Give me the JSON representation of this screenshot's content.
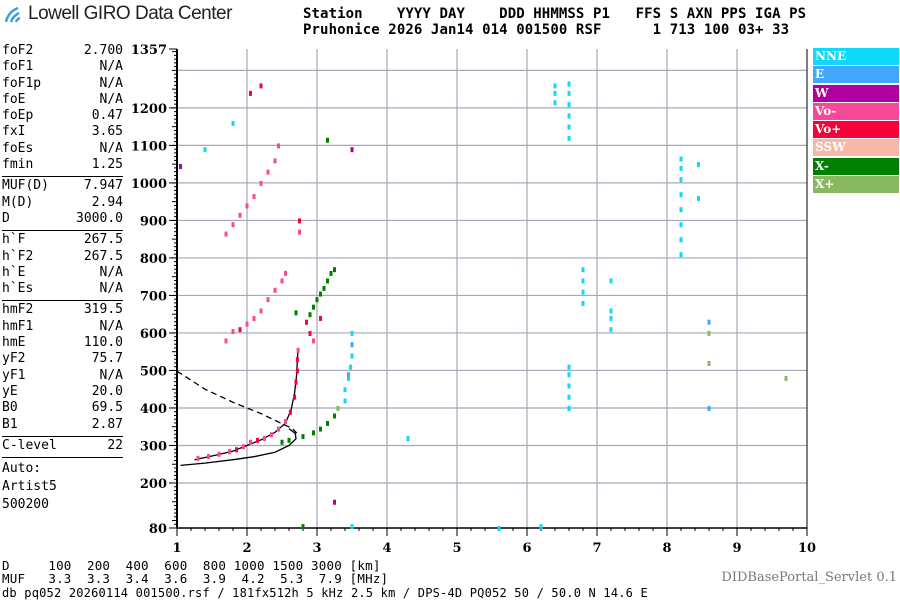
{
  "header": {
    "logo_text": "Lowell GIRO Data Center",
    "labels_line": "Station    YYYY DAY    DDD HHMMSS P1   FFS S AXN PPS IGA PS",
    "values_line": "Pruhonice 2026 Jan14 014 001500 RSF      1 713 100 03+ 33"
  },
  "params": {
    "group1": [
      [
        "foF2",
        "2.700"
      ],
      [
        "foF1",
        "N/A"
      ],
      [
        "foF1p",
        "N/A"
      ],
      [
        "foE",
        "N/A"
      ],
      [
        "foEp",
        "0.47"
      ],
      [
        "fxI",
        "3.65"
      ],
      [
        "foEs",
        "N/A"
      ],
      [
        "fmin",
        "1.25"
      ]
    ],
    "group2": [
      [
        "MUF(D)",
        "7.947"
      ],
      [
        "M(D)",
        "2.94"
      ],
      [
        "D",
        "3000.0"
      ]
    ],
    "group3": [
      [
        "h`F",
        "267.5"
      ],
      [
        "h`F2",
        "267.5"
      ],
      [
        "h`E",
        "N/A"
      ],
      [
        "h`Es",
        "N/A"
      ]
    ],
    "group4": [
      [
        "hmF2",
        "319.5"
      ],
      [
        "hmF1",
        "N/A"
      ],
      [
        "hmE",
        "110.0"
      ],
      [
        "yF2",
        "75.7"
      ],
      [
        "yF1",
        "N/A"
      ],
      [
        "yE",
        "20.0"
      ],
      [
        "B0",
        "69.5"
      ],
      [
        "B1",
        "2.87"
      ]
    ],
    "group5": [
      [
        "C-level",
        "22"
      ]
    ],
    "auto": [
      "Auto:",
      "Artist5",
      "500200"
    ]
  },
  "legend": [
    {
      "label": "NNE",
      "color": "#10d8f8"
    },
    {
      "label": "E",
      "color": "#40a8f8"
    },
    {
      "label": "W",
      "color": "#b000a0"
    },
    {
      "label": "Vo-",
      "color": "#f84898"
    },
    {
      "label": "Vo+",
      "color": "#f80038"
    },
    {
      "label": "SSW",
      "color": "#f8b8a8"
    },
    {
      "label": "X-",
      "color": "#008000"
    },
    {
      "label": "X+",
      "color": "#88b860"
    }
  ],
  "muf_table": {
    "d_line": "D     100  200  400  600  800 1000 1500 3000 [km]",
    "muf_line": "MUF   3.3  3.3  3.4  3.6  3.9  4.2  5.3  7.9 [MHz]"
  },
  "footer": "db pq052 20260114 001500.rsf / 181fx512h 5 kHz 2.5 km / DPS-4D PQ052 50 / 50.0 N 14.6 E",
  "version": "DIDBasePortal_Servlet 0.1",
  "chart_data": {
    "type": "scatter",
    "xlim": [
      1,
      10
    ],
    "ylim": [
      80,
      1357
    ],
    "xticks": [
      1,
      2,
      3,
      4,
      5,
      6,
      7,
      8,
      9,
      10
    ],
    "yticks": [
      80,
      200,
      300,
      400,
      500,
      600,
      700,
      800,
      900,
      1000,
      1100,
      1200,
      1357
    ],
    "grid": true,
    "legend_position": "right",
    "echoes": [
      [
        1.3,
        267,
        "Vo-"
      ],
      [
        1.45,
        272,
        "Vo-"
      ],
      [
        1.6,
        278,
        "Vo-"
      ],
      [
        1.75,
        285,
        "Vo-"
      ],
      [
        1.85,
        290,
        "Vo+"
      ],
      [
        1.95,
        298,
        "Vo-"
      ],
      [
        2.05,
        310,
        "Vo-"
      ],
      [
        2.15,
        315,
        "Vo+"
      ],
      [
        2.25,
        320,
        "Vo-"
      ],
      [
        2.35,
        330,
        "Vo-"
      ],
      [
        2.45,
        345,
        "Vo-"
      ],
      [
        2.55,
        365,
        "Vo-"
      ],
      [
        2.62,
        390,
        "Vo+"
      ],
      [
        2.68,
        430,
        "Vo+"
      ],
      [
        2.7,
        470,
        "Vo+"
      ],
      [
        2.72,
        500,
        "Vo+"
      ],
      [
        2.72,
        530,
        "Vo+"
      ],
      [
        2.73,
        555,
        "Vo-"
      ],
      [
        1.7,
        580,
        "Vo-"
      ],
      [
        1.8,
        605,
        "Vo-"
      ],
      [
        1.9,
        610,
        "Vo+"
      ],
      [
        2.0,
        625,
        "Vo-"
      ],
      [
        2.1,
        640,
        "Vo-"
      ],
      [
        2.2,
        660,
        "Vo-"
      ],
      [
        2.3,
        690,
        "Vo-"
      ],
      [
        2.4,
        715,
        "Vo-"
      ],
      [
        2.5,
        740,
        "Vo-"
      ],
      [
        2.55,
        760,
        "Vo-"
      ],
      [
        2.9,
        600,
        "Vo+"
      ],
      [
        2.85,
        630,
        "Vo+"
      ],
      [
        2.95,
        580,
        "Vo-"
      ],
      [
        3.05,
        640,
        "Vo+"
      ],
      [
        1.7,
        865,
        "Vo-"
      ],
      [
        1.8,
        890,
        "Vo-"
      ],
      [
        1.9,
        915,
        "Vo-"
      ],
      [
        2.0,
        940,
        "Vo-"
      ],
      [
        2.1,
        965,
        "Vo-"
      ],
      [
        2.2,
        1000,
        "Vo-"
      ],
      [
        2.3,
        1030,
        "Vo-"
      ],
      [
        2.4,
        1060,
        "Vo-"
      ],
      [
        2.45,
        1100,
        "Vo-"
      ],
      [
        2.2,
        1260,
        "Vo+"
      ],
      [
        2.05,
        1240,
        "Vo+"
      ],
      [
        1.05,
        1045,
        "W"
      ],
      [
        2.75,
        900,
        "Vo+"
      ],
      [
        2.75,
        870,
        "Vo-"
      ],
      [
        2.5,
        310,
        "X-"
      ],
      [
        2.6,
        315,
        "X-"
      ],
      [
        2.8,
        325,
        "X-"
      ],
      [
        2.95,
        335,
        "X-"
      ],
      [
        3.05,
        345,
        "X-"
      ],
      [
        3.15,
        360,
        "X-"
      ],
      [
        3.25,
        380,
        "X-"
      ],
      [
        3.3,
        400,
        "X+"
      ],
      [
        3.4,
        420,
        "NNE"
      ],
      [
        2.9,
        650,
        "X-"
      ],
      [
        2.95,
        670,
        "X-"
      ],
      [
        3.0,
        690,
        "X-"
      ],
      [
        3.05,
        705,
        "X-"
      ],
      [
        3.1,
        720,
        "X-"
      ],
      [
        3.15,
        740,
        "X-"
      ],
      [
        3.2,
        760,
        "X-"
      ],
      [
        3.25,
        770,
        "X-"
      ],
      [
        2.7,
        655,
        "X-"
      ],
      [
        3.15,
        1115,
        "X-"
      ],
      [
        3.4,
        450,
        "NNE"
      ],
      [
        3.45,
        480,
        "NNE"
      ],
      [
        3.48,
        510,
        "NNE"
      ],
      [
        3.5,
        540,
        "NNE"
      ],
      [
        3.5,
        570,
        "E"
      ],
      [
        3.5,
        600,
        "NNE"
      ],
      [
        3.45,
        490,
        "E"
      ],
      [
        6.6,
        400,
        "NNE"
      ],
      [
        6.6,
        430,
        "NNE"
      ],
      [
        6.6,
        460,
        "NNE"
      ],
      [
        6.6,
        490,
        "NNE"
      ],
      [
        6.6,
        510,
        "NNE"
      ],
      [
        6.8,
        680,
        "NNE"
      ],
      [
        6.8,
        710,
        "NNE"
      ],
      [
        6.8,
        740,
        "NNE"
      ],
      [
        6.8,
        770,
        "NNE"
      ],
      [
        6.6,
        1120,
        "NNE"
      ],
      [
        6.6,
        1150,
        "NNE"
      ],
      [
        6.6,
        1180,
        "NNE"
      ],
      [
        6.6,
        1210,
        "NNE"
      ],
      [
        6.6,
        1240,
        "NNE"
      ],
      [
        6.6,
        1265,
        "NNE"
      ],
      [
        6.4,
        1215,
        "NNE"
      ],
      [
        6.4,
        1240,
        "NNE"
      ],
      [
        6.4,
        1260,
        "NNE"
      ],
      [
        7.2,
        610,
        "NNE"
      ],
      [
        7.2,
        640,
        "NNE"
      ],
      [
        7.2,
        660,
        "NNE"
      ],
      [
        7.2,
        740,
        "NNE"
      ],
      [
        8.2,
        810,
        "NNE"
      ],
      [
        8.2,
        850,
        "NNE"
      ],
      [
        8.2,
        890,
        "NNE"
      ],
      [
        8.2,
        930,
        "NNE"
      ],
      [
        8.2,
        970,
        "NNE"
      ],
      [
        8.2,
        1010,
        "NNE"
      ],
      [
        8.2,
        1040,
        "NNE"
      ],
      [
        8.2,
        1065,
        "NNE"
      ],
      [
        8.45,
        1050,
        "NNE"
      ],
      [
        8.45,
        960,
        "NNE"
      ],
      [
        8.6,
        630,
        "E"
      ],
      [
        8.6,
        600,
        "X+"
      ],
      [
        8.6,
        520,
        "X+"
      ],
      [
        8.6,
        400,
        "E"
      ],
      [
        3.5,
        85,
        "NNE"
      ],
      [
        6.2,
        85,
        "NNE"
      ],
      [
        5.6,
        80,
        "NNE"
      ],
      [
        3.25,
        150,
        "W"
      ],
      [
        2.8,
        85,
        "X-"
      ],
      [
        9.7,
        480,
        "X+"
      ],
      [
        4.3,
        320,
        "NNE"
      ],
      [
        1.4,
        1090,
        "NNE"
      ],
      [
        3.5,
        1090,
        "W"
      ],
      [
        1.8,
        1160,
        "NNE"
      ]
    ],
    "profile_curve": [
      [
        1.25,
        262
      ],
      [
        1.5,
        272
      ],
      [
        1.8,
        285
      ],
      [
        2.0,
        300
      ],
      [
        2.2,
        315
      ],
      [
        2.4,
        335
      ],
      [
        2.55,
        360
      ],
      [
        2.63,
        395
      ],
      [
        2.68,
        440
      ],
      [
        2.71,
        490
      ],
      [
        2.72,
        530
      ],
      [
        2.73,
        560
      ]
    ],
    "virtual_curve": [
      [
        1.05,
        247
      ],
      [
        1.4,
        253
      ],
      [
        1.8,
        262
      ],
      [
        2.1,
        270
      ],
      [
        2.4,
        282
      ],
      [
        2.6,
        300
      ],
      [
        2.7,
        318
      ],
      [
        2.69,
        332
      ],
      [
        2.6,
        345
      ]
    ],
    "dashed_curve": [
      [
        1.0,
        498
      ],
      [
        1.4,
        450
      ],
      [
        1.8,
        415
      ],
      [
        2.2,
        385
      ],
      [
        2.5,
        358
      ],
      [
        2.65,
        345
      ],
      [
        2.71,
        333
      ]
    ]
  }
}
